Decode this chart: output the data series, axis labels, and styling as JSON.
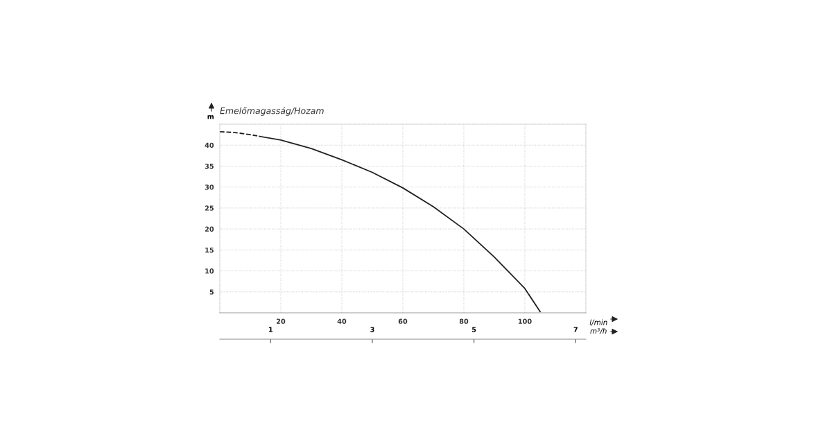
{
  "chart_data": {
    "type": "line",
    "title": "Emelőmagasság/Hozam",
    "ylabel": "m",
    "xlabel": "l/min",
    "x2label": "m³/h",
    "series": [
      {
        "color": "#231f20",
        "line_style": "dashed",
        "x": [
          0,
          5,
          10,
          13
        ],
        "values": [
          43.2,
          43.0,
          42.5,
          42.1
        ]
      },
      {
        "color": "#231f20",
        "line_style": "solid",
        "x": [
          13,
          20,
          30,
          40,
          50,
          60,
          70,
          80,
          90,
          100,
          105
        ],
        "values": [
          42.1,
          41.2,
          39.2,
          36.5,
          33.5,
          29.8,
          25.3,
          20.0,
          13.3,
          5.8,
          0.3
        ]
      }
    ],
    "xlim": [
      0,
      120
    ],
    "xticks": [
      20,
      40,
      60,
      80,
      100
    ],
    "ylim": [
      0,
      45
    ],
    "yticks": [
      5,
      10,
      15,
      20,
      25,
      30,
      35,
      40
    ],
    "x2lim": [
      0,
      7.2
    ],
    "x2ticks": [
      1,
      3,
      5,
      7
    ],
    "grid": true,
    "marker": "none"
  }
}
